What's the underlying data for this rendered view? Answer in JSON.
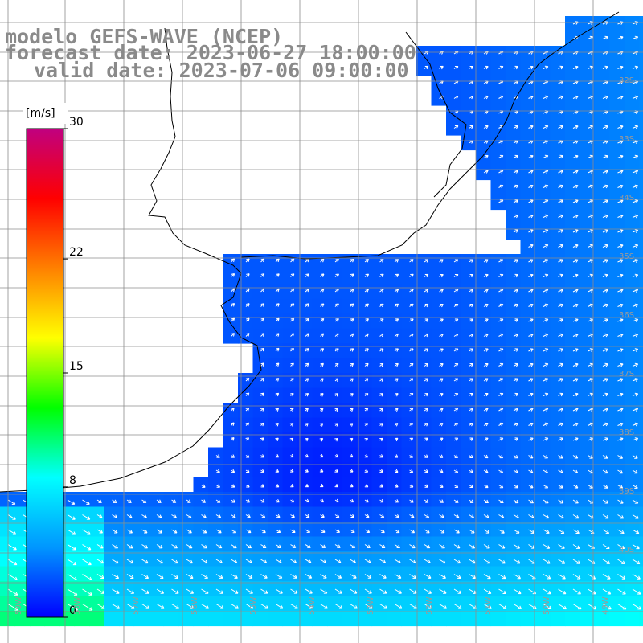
{
  "title": {
    "line1": "modelo GEFS-WAVE (NCEP)",
    "line2": "forecast date: 2023-06-27 18:00:00",
    "line3": "valid date: 2023-07-06 09:00:00"
  },
  "colorbar": {
    "unit": "[m/s]",
    "min": 0,
    "max": 30,
    "ticks": [
      {
        "label": "30",
        "value": 30
      },
      {
        "label": "22",
        "value": 22
      },
      {
        "label": "15",
        "value": 15
      },
      {
        "label": "8",
        "value": 8
      },
      {
        "label": "0",
        "value": 0
      }
    ],
    "colors": [
      "#0000ff",
      "#0096ff",
      "#00ffff",
      "#00ff00",
      "#ffff00",
      "#ff8000",
      "#ff0000",
      "#c00080"
    ]
  },
  "grid": {
    "lat_labels": [
      "32S",
      "33S",
      "34S",
      "35S",
      "36S",
      "37S",
      "38S",
      "39S",
      "40S"
    ],
    "lon_labels": [
      "59W",
      "58W",
      "57W",
      "56W",
      "55W",
      "54W",
      "53W",
      "52W",
      "51W",
      "50W",
      "49W"
    ]
  },
  "colors": {
    "land": "#ffffff",
    "coast": "#000000",
    "grid": "#8c8c8c",
    "arrow": "#ffffff",
    "title": "#8a8a8a"
  }
}
